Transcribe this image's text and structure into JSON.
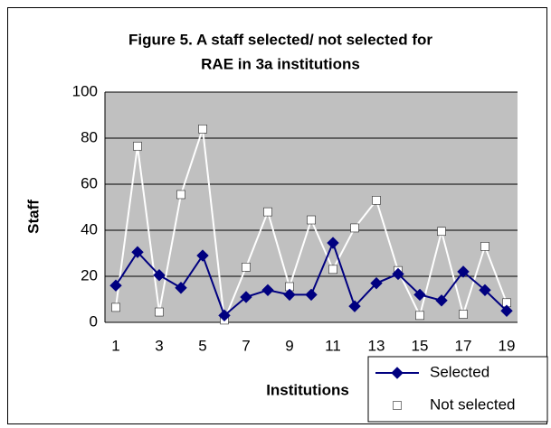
{
  "chart_data": {
    "type": "line",
    "title": [
      "Figure 5. A staff selected/ not selected for",
      "RAE in 3a institutions"
    ],
    "x_label": "Institutions",
    "y_label": "Staff",
    "categories": [
      "1",
      null,
      "3",
      null,
      "5",
      null,
      "7",
      null,
      "9",
      null,
      "11",
      null,
      "13",
      null,
      "15",
      null,
      "17",
      null,
      "19"
    ],
    "series": [
      {
        "name": "Selected",
        "color": "#000080",
        "marker": "diamond",
        "values": [
          16,
          30.5,
          20.5,
          15,
          29,
          3,
          11,
          14,
          12,
          12,
          34.5,
          7,
          17,
          21,
          12,
          9.5,
          22,
          14,
          5
        ]
      },
      {
        "name": "Not selected",
        "color": "#ffffff",
        "marker": "square",
        "values": [
          6.5,
          76.5,
          4.5,
          55.5,
          84,
          1,
          24,
          48,
          15.5,
          44.5,
          23,
          41,
          53,
          22.5,
          3,
          39.5,
          3.5,
          33,
          8.5
        ]
      }
    ],
    "ylim": [
      0,
      100
    ],
    "yticks": [
      0,
      20,
      40,
      60,
      80,
      100
    ],
    "grid": true,
    "plot_background": "#c0c0c0",
    "legend": "bottom-right"
  }
}
